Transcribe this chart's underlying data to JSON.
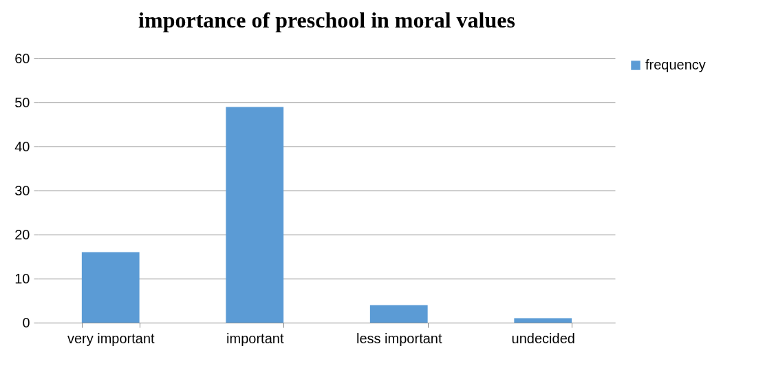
{
  "chart_data": {
    "type": "bar",
    "title": "importance of preschool in moral values",
    "categories": [
      "very important",
      "important",
      "less important",
      "undecided"
    ],
    "series": [
      {
        "name": "frequency",
        "color": "#5b9bd5",
        "values": [
          16,
          49,
          4,
          1
        ]
      }
    ],
    "ylim": [
      0,
      60
    ],
    "yticks": [
      0,
      10,
      20,
      30,
      40,
      50,
      60
    ],
    "grid": "y",
    "legend": "right"
  }
}
